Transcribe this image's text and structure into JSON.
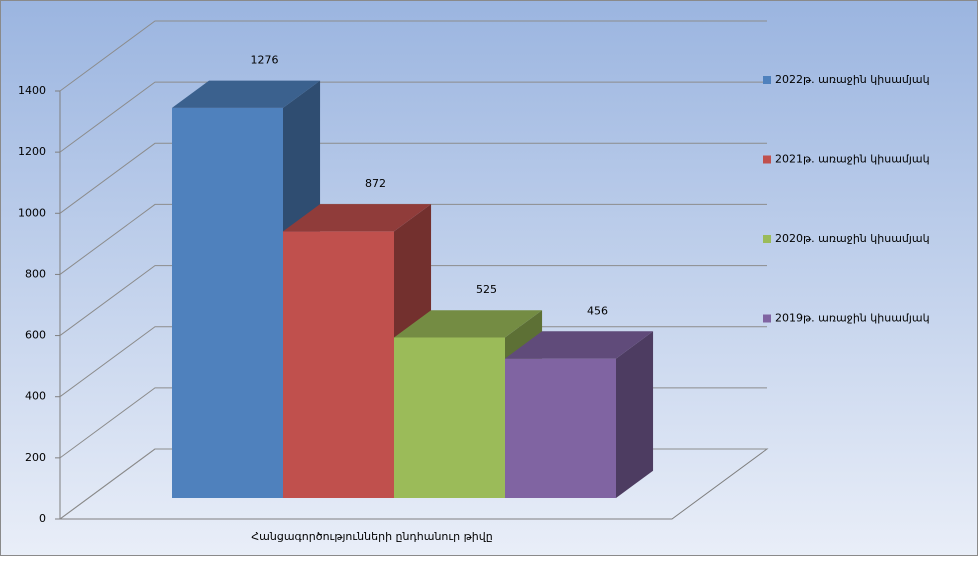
{
  "chart_data": {
    "type": "bar3d",
    "categories": [
      "Հանցագործությունների ընդհանուր թիվը"
    ],
    "series": [
      {
        "name": "2022թ. առաջին կիսամյակ",
        "color": "#4f81bd",
        "values": [
          1276
        ]
      },
      {
        "name": "2021թ. առաջին կիսամյակ",
        "color": "#c0504d",
        "values": [
          872
        ]
      },
      {
        "name": "2020թ. առաջին կիսամյակ",
        "color": "#9bbb59",
        "values": [
          525
        ]
      },
      {
        "name": "2019թ. առաջին կիսամյակ",
        "color": "#8064a2",
        "values": [
          456
        ]
      }
    ],
    "ylim": [
      0,
      1400
    ],
    "yticks": [
      0,
      200,
      400,
      600,
      800,
      1000,
      1200,
      1400
    ],
    "grid": true,
    "legend": "right"
  }
}
